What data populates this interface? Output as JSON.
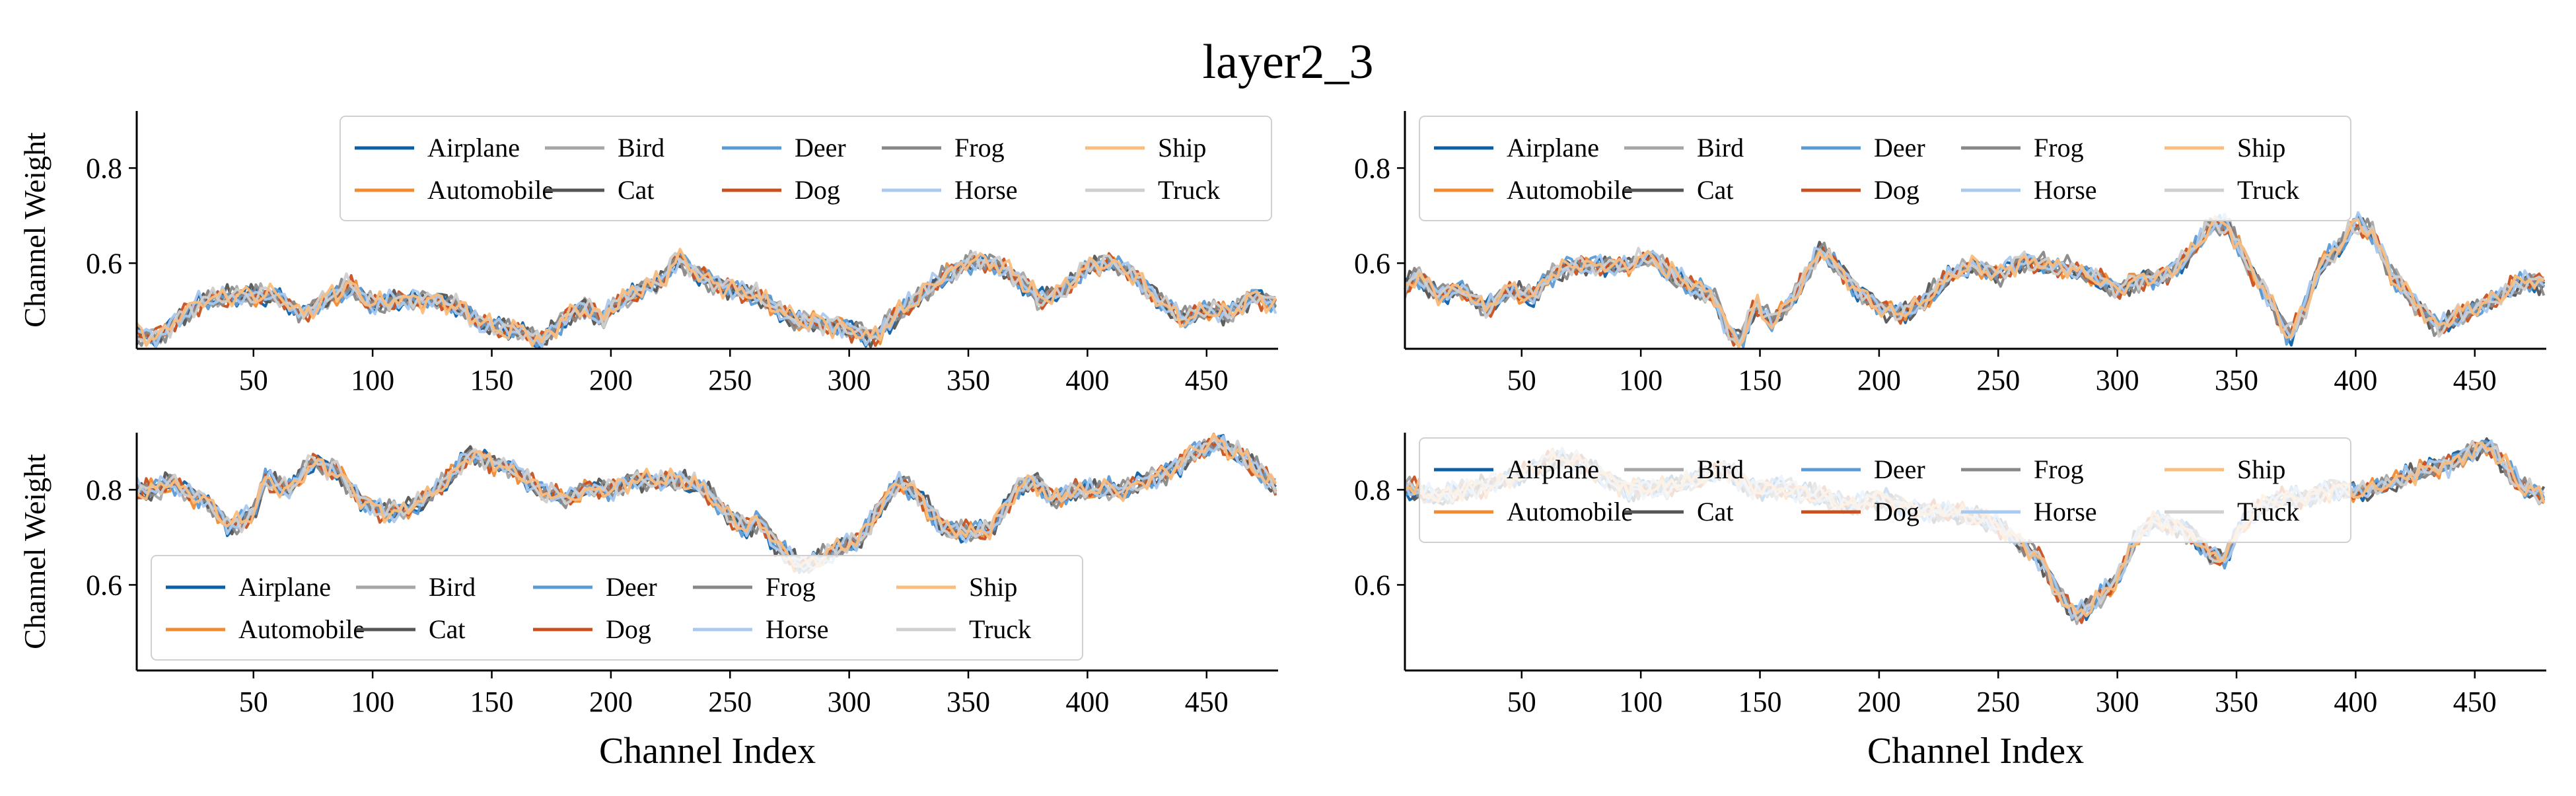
{
  "figure": {
    "title": "layer2_3"
  },
  "chart_data": [
    {
      "type": "line",
      "panel": "top-left",
      "xlabel": "",
      "ylabel": "Channel Weight",
      "xlim": [
        1,
        480
      ],
      "ylim": [
        0.42,
        0.92
      ],
      "xticks": [
        50,
        100,
        150,
        200,
        250,
        300,
        350,
        400,
        450
      ],
      "yticks": [
        0.6,
        0.8
      ],
      "legend": {
        "placement": "top-right",
        "columns": 5
      },
      "base": [
        [
          1,
          0.45
        ],
        [
          10,
          0.44
        ],
        [
          20,
          0.49
        ],
        [
          30,
          0.52
        ],
        [
          45,
          0.53
        ],
        [
          60,
          0.53
        ],
        [
          70,
          0.49
        ],
        [
          80,
          0.52
        ],
        [
          90,
          0.55
        ],
        [
          100,
          0.51
        ],
        [
          110,
          0.52
        ],
        [
          125,
          0.52
        ],
        [
          135,
          0.51
        ],
        [
          145,
          0.47
        ],
        [
          155,
          0.46
        ],
        [
          165,
          0.45
        ],
        [
          170,
          0.43
        ],
        [
          180,
          0.48
        ],
        [
          190,
          0.51
        ],
        [
          195,
          0.48
        ],
        [
          205,
          0.52
        ],
        [
          215,
          0.55
        ],
        [
          222,
          0.56
        ],
        [
          228,
          0.61
        ],
        [
          235,
          0.58
        ],
        [
          245,
          0.55
        ],
        [
          255,
          0.54
        ],
        [
          265,
          0.52
        ],
        [
          275,
          0.48
        ],
        [
          290,
          0.47
        ],
        [
          300,
          0.46
        ],
        [
          310,
          0.44
        ],
        [
          320,
          0.49
        ],
        [
          330,
          0.53
        ],
        [
          340,
          0.57
        ],
        [
          350,
          0.6
        ],
        [
          360,
          0.6
        ],
        [
          370,
          0.57
        ],
        [
          380,
          0.52
        ],
        [
          390,
          0.54
        ],
        [
          400,
          0.59
        ],
        [
          410,
          0.6
        ],
        [
          420,
          0.57
        ],
        [
          430,
          0.52
        ],
        [
          440,
          0.48
        ],
        [
          450,
          0.5
        ],
        [
          460,
          0.49
        ],
        [
          470,
          0.53
        ],
        [
          480,
          0.51
        ]
      ]
    },
    {
      "type": "line",
      "panel": "top-right",
      "xlabel": "",
      "ylabel": "",
      "xlim": [
        1,
        480
      ],
      "ylim": [
        0.42,
        0.92
      ],
      "xticks": [
        50,
        100,
        150,
        200,
        250,
        300,
        350,
        400,
        450
      ],
      "yticks": [
        0.6,
        0.8
      ],
      "legend": {
        "placement": "top-left",
        "columns": 5
      },
      "base": [
        [
          1,
          0.55
        ],
        [
          5,
          0.58
        ],
        [
          15,
          0.54
        ],
        [
          25,
          0.55
        ],
        [
          35,
          0.51
        ],
        [
          45,
          0.55
        ],
        [
          55,
          0.53
        ],
        [
          60,
          0.57
        ],
        [
          70,
          0.6
        ],
        [
          80,
          0.6
        ],
        [
          95,
          0.6
        ],
        [
          105,
          0.62
        ],
        [
          110,
          0.59
        ],
        [
          120,
          0.56
        ],
        [
          130,
          0.54
        ],
        [
          137,
          0.46
        ],
        [
          142,
          0.44
        ],
        [
          148,
          0.52
        ],
        [
          155,
          0.48
        ],
        [
          165,
          0.54
        ],
        [
          175,
          0.63
        ],
        [
          182,
          0.6
        ],
        [
          190,
          0.55
        ],
        [
          200,
          0.51
        ],
        [
          210,
          0.5
        ],
        [
          220,
          0.53
        ],
        [
          230,
          0.58
        ],
        [
          240,
          0.6
        ],
        [
          250,
          0.58
        ],
        [
          260,
          0.61
        ],
        [
          270,
          0.6
        ],
        [
          285,
          0.59
        ],
        [
          300,
          0.55
        ],
        [
          310,
          0.57
        ],
        [
          320,
          0.58
        ],
        [
          330,
          0.62
        ],
        [
          340,
          0.69
        ],
        [
          347,
          0.68
        ],
        [
          355,
          0.6
        ],
        [
          365,
          0.52
        ],
        [
          372,
          0.45
        ],
        [
          378,
          0.5
        ],
        [
          385,
          0.6
        ],
        [
          392,
          0.63
        ],
        [
          400,
          0.69
        ],
        [
          407,
          0.67
        ],
        [
          415,
          0.58
        ],
        [
          425,
          0.52
        ],
        [
          435,
          0.47
        ],
        [
          445,
          0.5
        ],
        [
          455,
          0.52
        ],
        [
          465,
          0.55
        ],
        [
          472,
          0.57
        ],
        [
          480,
          0.56
        ]
      ]
    },
    {
      "type": "line",
      "panel": "bottom-left",
      "xlabel": "Channel Index",
      "ylabel": "Channel Weight",
      "xlim": [
        1,
        480
      ],
      "ylim": [
        0.42,
        0.92
      ],
      "xticks": [
        50,
        100,
        150,
        200,
        250,
        300,
        350,
        400,
        450
      ],
      "yticks": [
        0.6,
        0.8
      ],
      "legend": {
        "placement": "bottom-left",
        "columns": 5
      },
      "base": [
        [
          1,
          0.8
        ],
        [
          10,
          0.8
        ],
        [
          15,
          0.82
        ],
        [
          20,
          0.8
        ],
        [
          30,
          0.78
        ],
        [
          40,
          0.72
        ],
        [
          50,
          0.75
        ],
        [
          55,
          0.82
        ],
        [
          65,
          0.8
        ],
        [
          75,
          0.86
        ],
        [
          85,
          0.84
        ],
        [
          95,
          0.78
        ],
        [
          105,
          0.75
        ],
        [
          115,
          0.76
        ],
        [
          125,
          0.79
        ],
        [
          135,
          0.84
        ],
        [
          140,
          0.88
        ],
        [
          150,
          0.86
        ],
        [
          160,
          0.84
        ],
        [
          170,
          0.8
        ],
        [
          180,
          0.78
        ],
        [
          190,
          0.8
        ],
        [
          200,
          0.8
        ],
        [
          210,
          0.82
        ],
        [
          220,
          0.82
        ],
        [
          230,
          0.82
        ],
        [
          240,
          0.8
        ],
        [
          250,
          0.74
        ],
        [
          258,
          0.72
        ],
        [
          262,
          0.74
        ],
        [
          270,
          0.68
        ],
        [
          280,
          0.64
        ],
        [
          290,
          0.66
        ],
        [
          300,
          0.69
        ],
        [
          305,
          0.7
        ],
        [
          315,
          0.78
        ],
        [
          322,
          0.82
        ],
        [
          330,
          0.78
        ],
        [
          340,
          0.72
        ],
        [
          350,
          0.71
        ],
        [
          360,
          0.72
        ],
        [
          370,
          0.8
        ],
        [
          378,
          0.82
        ],
        [
          385,
          0.78
        ],
        [
          395,
          0.8
        ],
        [
          405,
          0.8
        ],
        [
          415,
          0.8
        ],
        [
          425,
          0.82
        ],
        [
          435,
          0.84
        ],
        [
          445,
          0.88
        ],
        [
          455,
          0.9
        ],
        [
          465,
          0.87
        ],
        [
          472,
          0.84
        ],
        [
          480,
          0.8
        ]
      ]
    },
    {
      "type": "line",
      "panel": "bottom-right",
      "xlabel": "Channel Index",
      "ylabel": "",
      "xlim": [
        1,
        480
      ],
      "ylim": [
        0.42,
        0.92
      ],
      "xticks": [
        50,
        100,
        150,
        200,
        250,
        300,
        350,
        400,
        450
      ],
      "yticks": [
        0.6,
        0.8
      ],
      "legend": {
        "placement": "top-left",
        "columns": 5
      },
      "base": [
        [
          1,
          0.8
        ],
        [
          15,
          0.78
        ],
        [
          30,
          0.8
        ],
        [
          45,
          0.82
        ],
        [
          55,
          0.84
        ],
        [
          65,
          0.86
        ],
        [
          75,
          0.85
        ],
        [
          85,
          0.82
        ],
        [
          95,
          0.8
        ],
        [
          110,
          0.8
        ],
        [
          125,
          0.82
        ],
        [
          135,
          0.84
        ],
        [
          145,
          0.8
        ],
        [
          160,
          0.8
        ],
        [
          175,
          0.78
        ],
        [
          190,
          0.76
        ],
        [
          200,
          0.78
        ],
        [
          210,
          0.76
        ],
        [
          220,
          0.75
        ],
        [
          230,
          0.75
        ],
        [
          240,
          0.74
        ],
        [
          250,
          0.72
        ],
        [
          260,
          0.68
        ],
        [
          268,
          0.65
        ],
        [
          275,
          0.58
        ],
        [
          282,
          0.53
        ],
        [
          288,
          0.55
        ],
        [
          295,
          0.58
        ],
        [
          302,
          0.62
        ],
        [
          308,
          0.7
        ],
        [
          315,
          0.73
        ],
        [
          325,
          0.72
        ],
        [
          332,
          0.7
        ],
        [
          338,
          0.66
        ],
        [
          345,
          0.65
        ],
        [
          352,
          0.72
        ],
        [
          360,
          0.76
        ],
        [
          370,
          0.78
        ],
        [
          380,
          0.78
        ],
        [
          390,
          0.8
        ],
        [
          400,
          0.79
        ],
        [
          410,
          0.8
        ],
        [
          420,
          0.82
        ],
        [
          430,
          0.84
        ],
        [
          440,
          0.85
        ],
        [
          450,
          0.88
        ],
        [
          456,
          0.89
        ],
        [
          462,
          0.85
        ],
        [
          470,
          0.8
        ],
        [
          480,
          0.78
        ]
      ]
    }
  ],
  "series": [
    {
      "name": "Airplane",
      "color": "#0b5fa5"
    },
    {
      "name": "Automobile",
      "color": "#f28a30"
    },
    {
      "name": "Bird",
      "color": "#a6a6a6"
    },
    {
      "name": "Cat",
      "color": "#555555"
    },
    {
      "name": "Deer",
      "color": "#5b9bd5"
    },
    {
      "name": "Dog",
      "color": "#c8501e"
    },
    {
      "name": "Frog",
      "color": "#888888"
    },
    {
      "name": "Horse",
      "color": "#a9c9ef"
    },
    {
      "name": "Ship",
      "color": "#f9bd7e"
    },
    {
      "name": "Truck",
      "color": "#cfcfcf"
    }
  ]
}
